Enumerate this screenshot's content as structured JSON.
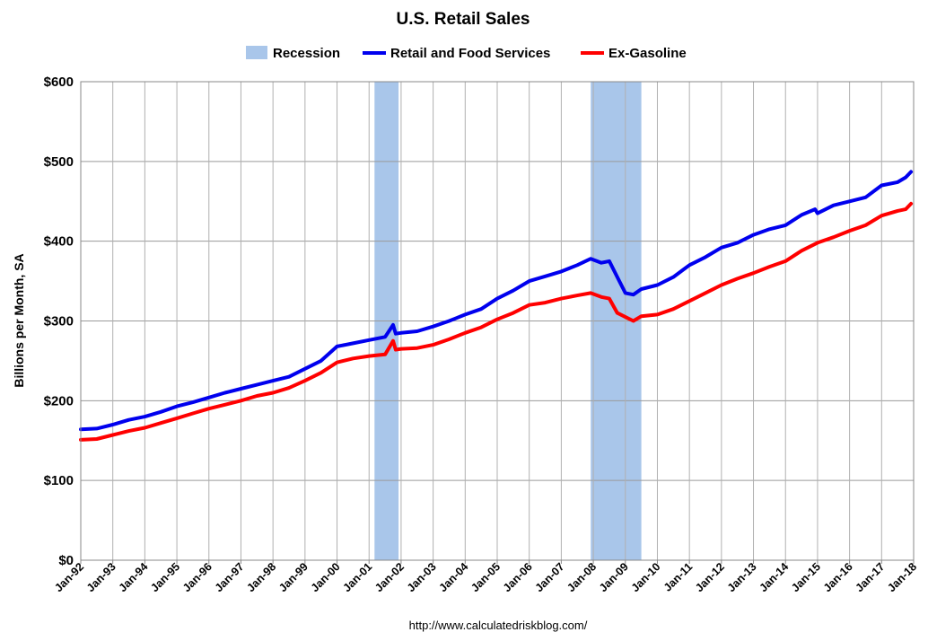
{
  "chart_data": {
    "type": "line",
    "title": "U.S. Retail Sales",
    "ylabel": "Billions per Month, SA",
    "xlabel": "",
    "source": "http://www.calculatedriskblog.com/",
    "ylim": [
      0,
      600
    ],
    "y_ticks": [
      0,
      100,
      200,
      300,
      400,
      500,
      600
    ],
    "y_tick_labels": [
      "$0",
      "$100",
      "$200",
      "$300",
      "$400",
      "$500",
      "$600"
    ],
    "xlim": [
      1992.0,
      2018.0
    ],
    "x_tick_labels": [
      "Jan-92",
      "Jan-93",
      "Jan-94",
      "Jan-95",
      "Jan-96",
      "Jan-97",
      "Jan-98",
      "Jan-99",
      "Jan-00",
      "Jan-01",
      "Jan-02",
      "Jan-03",
      "Jan-04",
      "Jan-05",
      "Jan-06",
      "Jan-07",
      "Jan-08",
      "Jan-09",
      "Jan-10",
      "Jan-11",
      "Jan-12",
      "Jan-13",
      "Jan-14",
      "Jan-15",
      "Jan-16",
      "Jan-17",
      "Jan-18"
    ],
    "grid": true,
    "legend_position": "top",
    "recessions": [
      {
        "name": "Recession",
        "start": 2001.17,
        "end": 2001.92
      },
      {
        "name": "Recession",
        "start": 2007.92,
        "end": 2009.5
      }
    ],
    "recession_label": "Recession",
    "recession_color": "#a9c6ea",
    "series": [
      {
        "name": "Retail and Food Services",
        "color": "#0000ee",
        "points": [
          [
            1992.0,
            164
          ],
          [
            1992.5,
            165
          ],
          [
            1993.0,
            170
          ],
          [
            1993.5,
            176
          ],
          [
            1994.0,
            180
          ],
          [
            1994.5,
            186
          ],
          [
            1995.0,
            193
          ],
          [
            1995.5,
            198
          ],
          [
            1996.0,
            204
          ],
          [
            1996.5,
            210
          ],
          [
            1997.0,
            215
          ],
          [
            1997.5,
            220
          ],
          [
            1998.0,
            225
          ],
          [
            1998.5,
            230
          ],
          [
            1999.0,
            240
          ],
          [
            1999.5,
            250
          ],
          [
            2000.0,
            268
          ],
          [
            2000.5,
            272
          ],
          [
            2001.0,
            276
          ],
          [
            2001.5,
            280
          ],
          [
            2001.75,
            295
          ],
          [
            2001.83,
            284
          ],
          [
            2002.0,
            285
          ],
          [
            2002.5,
            287
          ],
          [
            2003.0,
            293
          ],
          [
            2003.5,
            300
          ],
          [
            2004.0,
            308
          ],
          [
            2004.5,
            315
          ],
          [
            2005.0,
            328
          ],
          [
            2005.5,
            338
          ],
          [
            2006.0,
            350
          ],
          [
            2006.5,
            356
          ],
          [
            2007.0,
            362
          ],
          [
            2007.5,
            370
          ],
          [
            2007.92,
            378
          ],
          [
            2008.25,
            373
          ],
          [
            2008.5,
            375
          ],
          [
            2008.75,
            355
          ],
          [
            2009.0,
            335
          ],
          [
            2009.25,
            333
          ],
          [
            2009.5,
            340
          ],
          [
            2010.0,
            345
          ],
          [
            2010.5,
            355
          ],
          [
            2011.0,
            370
          ],
          [
            2011.5,
            380
          ],
          [
            2012.0,
            392
          ],
          [
            2012.5,
            398
          ],
          [
            2013.0,
            408
          ],
          [
            2013.5,
            415
          ],
          [
            2014.0,
            420
          ],
          [
            2014.5,
            433
          ],
          [
            2014.92,
            440
          ],
          [
            2015.0,
            435
          ],
          [
            2015.5,
            445
          ],
          [
            2016.0,
            450
          ],
          [
            2016.5,
            455
          ],
          [
            2017.0,
            470
          ],
          [
            2017.5,
            474
          ],
          [
            2017.75,
            480
          ],
          [
            2017.92,
            487
          ]
        ]
      },
      {
        "name": "Ex-Gasoline",
        "color": "#ff0000",
        "points": [
          [
            1992.0,
            151
          ],
          [
            1992.5,
            152
          ],
          [
            1993.0,
            157
          ],
          [
            1993.5,
            162
          ],
          [
            1994.0,
            166
          ],
          [
            1994.5,
            172
          ],
          [
            1995.0,
            178
          ],
          [
            1995.5,
            184
          ],
          [
            1996.0,
            190
          ],
          [
            1996.5,
            195
          ],
          [
            1997.0,
            200
          ],
          [
            1997.5,
            206
          ],
          [
            1998.0,
            210
          ],
          [
            1998.5,
            216
          ],
          [
            1999.0,
            225
          ],
          [
            1999.5,
            235
          ],
          [
            2000.0,
            248
          ],
          [
            2000.5,
            253
          ],
          [
            2001.0,
            256
          ],
          [
            2001.5,
            258
          ],
          [
            2001.75,
            275
          ],
          [
            2001.83,
            264
          ],
          [
            2002.0,
            265
          ],
          [
            2002.5,
            266
          ],
          [
            2003.0,
            270
          ],
          [
            2003.5,
            277
          ],
          [
            2004.0,
            285
          ],
          [
            2004.5,
            292
          ],
          [
            2005.0,
            302
          ],
          [
            2005.5,
            310
          ],
          [
            2006.0,
            320
          ],
          [
            2006.5,
            323
          ],
          [
            2007.0,
            328
          ],
          [
            2007.5,
            332
          ],
          [
            2007.92,
            335
          ],
          [
            2008.25,
            330
          ],
          [
            2008.5,
            328
          ],
          [
            2008.75,
            310
          ],
          [
            2009.0,
            305
          ],
          [
            2009.25,
            300
          ],
          [
            2009.5,
            306
          ],
          [
            2010.0,
            308
          ],
          [
            2010.5,
            315
          ],
          [
            2011.0,
            325
          ],
          [
            2011.5,
            335
          ],
          [
            2012.0,
            345
          ],
          [
            2012.5,
            353
          ],
          [
            2013.0,
            360
          ],
          [
            2013.5,
            368
          ],
          [
            2014.0,
            375
          ],
          [
            2014.5,
            388
          ],
          [
            2015.0,
            398
          ],
          [
            2015.5,
            405
          ],
          [
            2016.0,
            413
          ],
          [
            2016.5,
            420
          ],
          [
            2017.0,
            432
          ],
          [
            2017.5,
            438
          ],
          [
            2017.75,
            440
          ],
          [
            2017.92,
            447
          ]
        ]
      }
    ]
  }
}
